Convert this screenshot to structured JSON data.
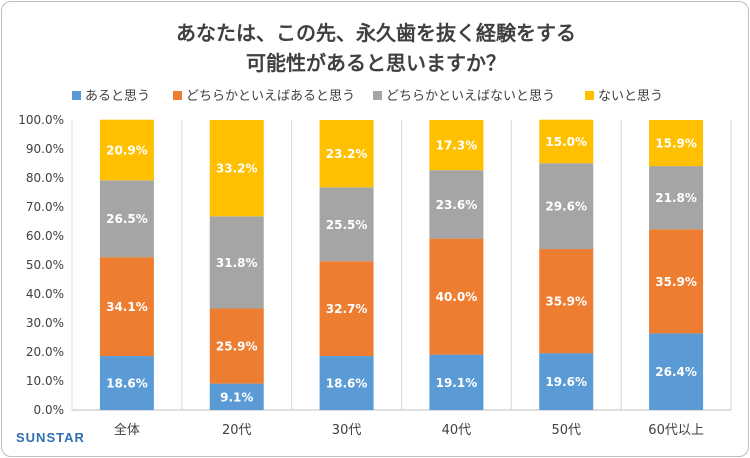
{
  "chart_data": {
    "type": "bar",
    "stacked": true,
    "title": "あなたは、この先、永久歯を抜く経験をする\n可能性があると思いますか？",
    "categories": [
      "全体",
      "20代",
      "30代",
      "40代",
      "50代",
      "60代以上"
    ],
    "series": [
      {
        "name": "あると思う",
        "color": "#5b9bd5",
        "values": [
          18.6,
          9.1,
          18.6,
          19.1,
          19.6,
          26.4
        ]
      },
      {
        "name": "どちらかといえばあると思う",
        "color": "#ed7d31",
        "values": [
          34.1,
          25.9,
          32.7,
          40.0,
          35.9,
          35.9
        ]
      },
      {
        "name": "どちらかといえばないと思う",
        "color": "#a5a5a5",
        "values": [
          26.5,
          31.8,
          25.5,
          23.6,
          29.6,
          21.8
        ]
      },
      {
        "name": "ないと思う",
        "color": "#ffc000",
        "values": [
          20.9,
          33.2,
          23.2,
          17.3,
          15.0,
          15.9
        ]
      }
    ],
    "y_ticks": [
      "0.0%",
      "10.0%",
      "20.0%",
      "30.0%",
      "40.0%",
      "50.0%",
      "60.0%",
      "70.0%",
      "80.0%",
      "90.0%",
      "100.0%"
    ],
    "ylim": [
      0,
      100
    ],
    "legend_position": "top",
    "grid": "vertical-separators"
  },
  "brand": {
    "name": "SUNSTAR",
    "color": "#2f6fb0"
  }
}
